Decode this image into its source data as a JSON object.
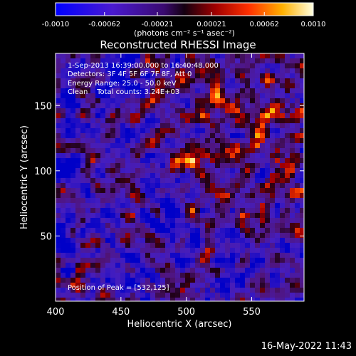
{
  "chart_data": {
    "type": "heatmap",
    "title": "Reconstructed RHESSI Image",
    "xlabel": "Heliocentric X (arcsec)",
    "ylabel": "Heliocentric Y (arcsec)",
    "xlim": [
      400,
      590
    ],
    "ylim": [
      0,
      190
    ],
    "x_ticks": [
      "400",
      "450",
      "500",
      "550"
    ],
    "x_tick_values": [
      400,
      450,
      500,
      550
    ],
    "y_ticks": [
      "50",
      "100",
      "150"
    ],
    "y_tick_values": [
      50,
      100,
      150
    ],
    "annotations": [
      "1-Sep-2013 16:39:00.000 to 16:40:48.000",
      "Detectors: 3F 4F 5F 6F 7F 8F, Att 0",
      "Energy Range: 25.0 - 50.0 keV",
      "Clean    Total counts: 3.24E+03"
    ],
    "peak_label": "Position of Peak = [532,125]",
    "peak": [
      532,
      125
    ],
    "colorbar": {
      "range": [
        -0.001,
        0.001
      ],
      "tick_labels": [
        "-0.0010",
        "-0.00062",
        "-0.00021",
        "0.00021",
        "0.00062",
        "0.0010"
      ],
      "tick_values": [
        -0.001,
        -0.00062,
        -0.00021,
        0.00021,
        0.00062,
        0.001
      ],
      "unit_label": "(photons cm⁻² s⁻¹ asec⁻²)"
    },
    "grid": false
  },
  "footer": {
    "date": "16-May-2022 11:43"
  }
}
